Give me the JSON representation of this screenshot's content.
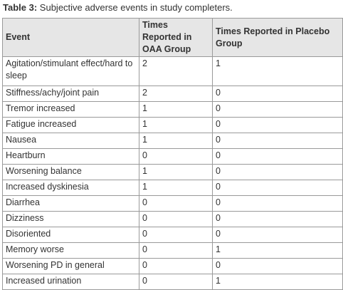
{
  "caption": {
    "label": "Table 3:",
    "text": "Subjective adverse events in study completers."
  },
  "table": {
    "header": [
      "Event",
      "Times Reported in OAA Group",
      "Times Reported in Placebo Group"
    ],
    "rows": [
      [
        "Agitation/stimulant effect/hard to sleep",
        2,
        1
      ],
      [
        "Stiffness/achy/joint pain",
        2,
        0
      ],
      [
        "Tremor increased",
        1,
        0
      ],
      [
        "Fatigue increased",
        1,
        0
      ],
      [
        "Nausea",
        1,
        0
      ],
      [
        "Heartburn",
        0,
        0
      ],
      [
        "Worsening balance",
        1,
        0
      ],
      [
        "Increased dyskinesia",
        1,
        0
      ],
      [
        "Diarrhea",
        0,
        0
      ],
      [
        "Dizziness",
        0,
        0
      ],
      [
        "Disoriented",
        0,
        0
      ],
      [
        "Memory worse",
        0,
        1
      ],
      [
        "Worsening PD in general",
        0,
        0
      ],
      [
        "Increased urination",
        0,
        1
      ]
    ]
  }
}
